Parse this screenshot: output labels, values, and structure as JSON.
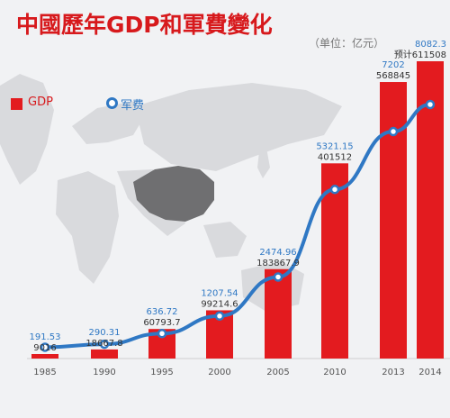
{
  "title": "中國歷年GDP和軍費變化",
  "unit": "（单位：亿元）",
  "legend": {
    "gdp": "GDP",
    "military": "军费"
  },
  "colors": {
    "gdp_bar": "#e31b1f",
    "military_line": "#2f78c4",
    "title": "#d7191c",
    "baseline": "#cfcfcf"
  },
  "chart_data": {
    "type": "bar",
    "title": "中國歷年GDP和軍費變化",
    "categories": [
      "1985",
      "1990",
      "1995",
      "2000",
      "2005",
      "2010",
      "2013",
      "2014"
    ],
    "series": [
      {
        "name": "GDP",
        "type": "bar",
        "values": [
          9016,
          18667.8,
          60793.7,
          99214.6,
          183867.9,
          401512,
          568845,
          611508
        ],
        "labels": [
          "9016",
          "18667.8",
          "60793.7",
          "99214.6",
          "183867.9",
          "401512",
          "568845",
          "预计611508"
        ]
      },
      {
        "name": "军费",
        "type": "line",
        "values": [
          191.53,
          290.31,
          636.72,
          1207.54,
          2474.96,
          5321.15,
          7202,
          8082.3
        ],
        "labels": [
          "191.53",
          "290.31",
          "636.72",
          "1207.54",
          "2474.96",
          "5321.15",
          "7202",
          "8082.3"
        ]
      }
    ],
    "legend_position": "top-left",
    "grid": false
  }
}
